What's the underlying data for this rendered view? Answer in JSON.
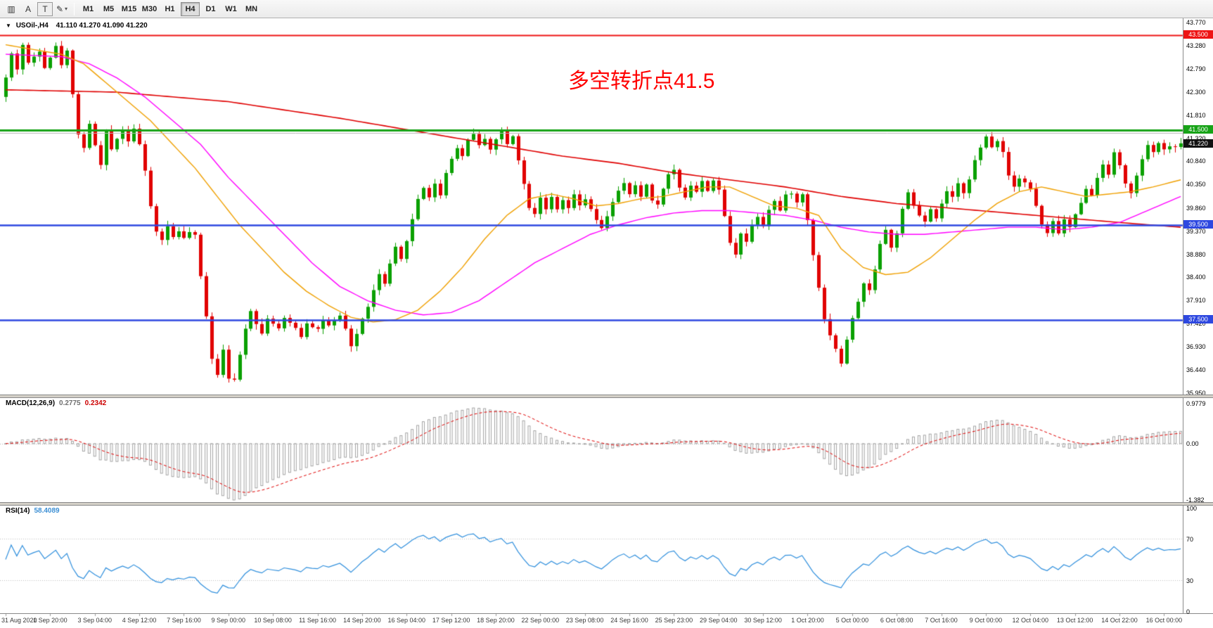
{
  "toolbar": {
    "chart_icon": "▥",
    "text_label": "A",
    "text_tool": "T",
    "draw_tool": "✎",
    "dropdown_arrow": "▾",
    "timeframes": [
      "M1",
      "M5",
      "M15",
      "M30",
      "H1",
      "H4",
      "D1",
      "W1",
      "MN"
    ],
    "active_timeframe": "H4"
  },
  "chart": {
    "title": {
      "collapse_arrow": "▼",
      "symbol": "USOil-,H4",
      "ohlc": "41.110 41.270 41.090 41.220"
    },
    "annotation": {
      "text": "多空转折点41.5",
      "color": "#ff0000"
    }
  },
  "chart_data": {
    "type": "candlestick",
    "symbol": "USOil-",
    "timeframe": "H4",
    "last_bar": {
      "open": 41.11,
      "high": 41.27,
      "low": 41.09,
      "close": 41.22
    },
    "current_price": {
      "value": 41.22,
      "label": "41.220",
      "badge_color": "#111111"
    },
    "price_axis": {
      "min": 35.95,
      "max": 43.77,
      "ticks": [
        "43.770",
        "43.280",
        "42.790",
        "42.300",
        "41.810",
        "41.320",
        "40.840",
        "40.350",
        "39.860",
        "39.370",
        "38.880",
        "38.400",
        "37.910",
        "37.420",
        "36.930",
        "36.440",
        "35.950"
      ]
    },
    "levels": [
      {
        "price": 43.5,
        "label": "43.500",
        "color": "#ee1515",
        "width": 2
      },
      {
        "price": 41.5,
        "label": "41.500",
        "color": "#17a317",
        "width": 3
      },
      {
        "price": 41.44,
        "label": "",
        "color": "#b8b8b8",
        "width": 1
      },
      {
        "price": 39.5,
        "label": "39.500",
        "color": "#2e48e0",
        "width": 2.5
      },
      {
        "price": 37.5,
        "label": "37.500",
        "color": "#2e48e0",
        "width": 2.5
      }
    ],
    "bar_count": 212,
    "price_path": [
      [
        0,
        42.6
      ],
      [
        1,
        43.1
      ],
      [
        2,
        42.8
      ],
      [
        3,
        43.3
      ],
      [
        4,
        42.9
      ],
      [
        6,
        43.2
      ],
      [
        7,
        42.85
      ],
      [
        9,
        43.25
      ],
      [
        10,
        42.9
      ],
      [
        11,
        43.15
      ],
      [
        12,
        42.3
      ],
      [
        13,
        41.4
      ],
      [
        14,
        41.15
      ],
      [
        15,
        41.6
      ],
      [
        16,
        41.2
      ],
      [
        17,
        40.75
      ],
      [
        18,
        41.45
      ],
      [
        19,
        41.1
      ],
      [
        20,
        41.35
      ],
      [
        21,
        41.5
      ],
      [
        22,
        41.3
      ],
      [
        23,
        41.55
      ],
      [
        24,
        41.2
      ],
      [
        25,
        40.6
      ],
      [
        26,
        39.9
      ],
      [
        27,
        39.35
      ],
      [
        28,
        39.2
      ],
      [
        29,
        39.45
      ],
      [
        30,
        39.25
      ],
      [
        31,
        39.4
      ],
      [
        32,
        39.2
      ],
      [
        33,
        39.35
      ],
      [
        34,
        39.25
      ],
      [
        35,
        38.4
      ],
      [
        36,
        37.6
      ],
      [
        37,
        36.7
      ],
      [
        38,
        36.35
      ],
      [
        39,
        36.9
      ],
      [
        40,
        36.3
      ],
      [
        41,
        36.2
      ],
      [
        42,
        36.75
      ],
      [
        43,
        37.35
      ],
      [
        44,
        37.7
      ],
      [
        45,
        37.45
      ],
      [
        46,
        37.2
      ],
      [
        47,
        37.55
      ],
      [
        49,
        37.3
      ],
      [
        50,
        37.5
      ],
      [
        52,
        37.35
      ],
      [
        53,
        37.15
      ],
      [
        54,
        37.45
      ],
      [
        56,
        37.3
      ],
      [
        57,
        37.5
      ],
      [
        58,
        37.35
      ],
      [
        60,
        37.55
      ],
      [
        61,
        37.3
      ],
      [
        62,
        36.95
      ],
      [
        63,
        37.2
      ],
      [
        64,
        37.5
      ],
      [
        65,
        37.8
      ],
      [
        66,
        38.1
      ],
      [
        67,
        38.45
      ],
      [
        68,
        38.25
      ],
      [
        69,
        38.65
      ],
      [
        70,
        39.0
      ],
      [
        71,
        38.75
      ],
      [
        72,
        39.2
      ],
      [
        73,
        39.6
      ],
      [
        74,
        40.05
      ],
      [
        75,
        40.3
      ],
      [
        76,
        40.1
      ],
      [
        77,
        40.35
      ],
      [
        78,
        40.15
      ],
      [
        79,
        40.6
      ],
      [
        80,
        40.9
      ],
      [
        81,
        41.15
      ],
      [
        82,
        40.95
      ],
      [
        83,
        41.3
      ],
      [
        84,
        41.45
      ],
      [
        85,
        41.15
      ],
      [
        86,
        41.35
      ],
      [
        87,
        41.1
      ],
      [
        88,
        41.3
      ],
      [
        89,
        41.45
      ],
      [
        90,
        41.2
      ],
      [
        91,
        41.4
      ],
      [
        92,
        40.9
      ],
      [
        93,
        40.35
      ],
      [
        94,
        39.9
      ],
      [
        95,
        39.75
      ],
      [
        96,
        40.1
      ],
      [
        97,
        39.85
      ],
      [
        98,
        40.05
      ],
      [
        99,
        39.8
      ],
      [
        100,
        40.0
      ],
      [
        101,
        39.85
      ],
      [
        102,
        40.1
      ],
      [
        103,
        39.9
      ],
      [
        104,
        40.05
      ],
      [
        105,
        39.8
      ],
      [
        106,
        39.6
      ],
      [
        107,
        39.4
      ],
      [
        108,
        39.7
      ],
      [
        109,
        40.0
      ],
      [
        110,
        40.2
      ],
      [
        111,
        40.35
      ],
      [
        112,
        40.15
      ],
      [
        113,
        40.3
      ],
      [
        114,
        40.1
      ],
      [
        115,
        40.35
      ],
      [
        116,
        40.05
      ],
      [
        117,
        39.9
      ],
      [
        118,
        40.3
      ],
      [
        119,
        40.55
      ],
      [
        120,
        40.65
      ],
      [
        121,
        40.3
      ],
      [
        122,
        40.1
      ],
      [
        123,
        40.35
      ],
      [
        124,
        40.2
      ],
      [
        125,
        40.4
      ],
      [
        126,
        40.25
      ],
      [
        127,
        40.45
      ],
      [
        128,
        40.2
      ],
      [
        129,
        39.7
      ],
      [
        130,
        39.1
      ],
      [
        131,
        38.9
      ],
      [
        132,
        39.35
      ],
      [
        133,
        39.15
      ],
      [
        134,
        39.5
      ],
      [
        135,
        39.7
      ],
      [
        136,
        39.5
      ],
      [
        137,
        39.85
      ],
      [
        138,
        40.0
      ],
      [
        139,
        39.8
      ],
      [
        140,
        40.1
      ],
      [
        141,
        40.2
      ],
      [
        142,
        39.95
      ],
      [
        143,
        40.15
      ],
      [
        144,
        39.6
      ],
      [
        145,
        38.9
      ],
      [
        146,
        38.2
      ],
      [
        147,
        37.5
      ],
      [
        148,
        37.2
      ],
      [
        149,
        36.9
      ],
      [
        150,
        36.55
      ],
      [
        151,
        37.1
      ],
      [
        152,
        37.5
      ],
      [
        153,
        37.9
      ],
      [
        154,
        38.25
      ],
      [
        155,
        38.1
      ],
      [
        156,
        38.6
      ],
      [
        157,
        39.1
      ],
      [
        158,
        39.4
      ],
      [
        159,
        39.0
      ],
      [
        160,
        39.35
      ],
      [
        161,
        39.8
      ],
      [
        162,
        40.15
      ],
      [
        163,
        39.9
      ],
      [
        164,
        39.7
      ],
      [
        165,
        39.55
      ],
      [
        166,
        39.8
      ],
      [
        167,
        39.6
      ],
      [
        168,
        39.95
      ],
      [
        169,
        40.2
      ],
      [
        170,
        40.05
      ],
      [
        171,
        40.35
      ],
      [
        172,
        40.2
      ],
      [
        173,
        40.5
      ],
      [
        174,
        40.85
      ],
      [
        175,
        41.1
      ],
      [
        176,
        41.35
      ],
      [
        177,
        41.15
      ],
      [
        178,
        41.3
      ],
      [
        179,
        41.05
      ],
      [
        180,
        40.55
      ],
      [
        181,
        40.35
      ],
      [
        182,
        40.5
      ],
      [
        183,
        40.4
      ],
      [
        184,
        40.25
      ],
      [
        185,
        39.9
      ],
      [
        186,
        39.5
      ],
      [
        187,
        39.3
      ],
      [
        188,
        39.55
      ],
      [
        189,
        39.35
      ],
      [
        190,
        39.6
      ],
      [
        191,
        39.45
      ],
      [
        192,
        39.7
      ],
      [
        193,
        40.0
      ],
      [
        194,
        40.3
      ],
      [
        195,
        40.1
      ],
      [
        196,
        40.5
      ],
      [
        197,
        40.8
      ],
      [
        198,
        40.6
      ],
      [
        199,
        41.0
      ],
      [
        200,
        40.75
      ],
      [
        201,
        40.4
      ],
      [
        202,
        40.15
      ],
      [
        203,
        40.5
      ],
      [
        204,
        40.9
      ],
      [
        205,
        41.15
      ],
      [
        206,
        41.0
      ],
      [
        207,
        41.25
      ],
      [
        208,
        41.05
      ],
      [
        209,
        41.2
      ],
      [
        210,
        41.1
      ],
      [
        211,
        41.22
      ]
    ],
    "moving_averages": [
      {
        "name": "slow-ma",
        "color": "#e00000",
        "width": 1.6,
        "path": [
          [
            0,
            42.35
          ],
          [
            20,
            42.3
          ],
          [
            40,
            42.1
          ],
          [
            60,
            41.75
          ],
          [
            80,
            41.35
          ],
          [
            90,
            41.15
          ],
          [
            100,
            40.95
          ],
          [
            110,
            40.8
          ],
          [
            120,
            40.6
          ],
          [
            130,
            40.45
          ],
          [
            140,
            40.3
          ],
          [
            150,
            40.1
          ],
          [
            160,
            39.95
          ],
          [
            170,
            39.85
          ],
          [
            180,
            39.75
          ],
          [
            190,
            39.65
          ],
          [
            200,
            39.55
          ],
          [
            211,
            39.45
          ]
        ]
      },
      {
        "name": "medium-ma",
        "color": "#ff00ff",
        "width": 1.4,
        "path": [
          [
            0,
            43.1
          ],
          [
            10,
            43.05
          ],
          [
            15,
            42.9
          ],
          [
            20,
            42.6
          ],
          [
            25,
            42.2
          ],
          [
            30,
            41.7
          ],
          [
            35,
            41.2
          ],
          [
            40,
            40.5
          ],
          [
            45,
            39.9
          ],
          [
            50,
            39.3
          ],
          [
            55,
            38.7
          ],
          [
            60,
            38.2
          ],
          [
            65,
            37.9
          ],
          [
            70,
            37.7
          ],
          [
            75,
            37.6
          ],
          [
            80,
            37.65
          ],
          [
            85,
            37.9
          ],
          [
            90,
            38.3
          ],
          [
            95,
            38.7
          ],
          [
            100,
            39.0
          ],
          [
            105,
            39.3
          ],
          [
            110,
            39.5
          ],
          [
            115,
            39.65
          ],
          [
            120,
            39.75
          ],
          [
            125,
            39.8
          ],
          [
            130,
            39.8
          ],
          [
            135,
            39.75
          ],
          [
            140,
            39.7
          ],
          [
            145,
            39.6
          ],
          [
            150,
            39.45
          ],
          [
            155,
            39.35
          ],
          [
            160,
            39.3
          ],
          [
            165,
            39.3
          ],
          [
            170,
            39.35
          ],
          [
            175,
            39.4
          ],
          [
            180,
            39.45
          ],
          [
            185,
            39.45
          ],
          [
            190,
            39.4
          ],
          [
            195,
            39.45
          ],
          [
            200,
            39.55
          ],
          [
            205,
            39.8
          ],
          [
            211,
            40.1
          ]
        ]
      },
      {
        "name": "fast-ma",
        "color": "#f0a000",
        "width": 1.4,
        "path": [
          [
            0,
            43.3
          ],
          [
            5,
            43.2
          ],
          [
            10,
            43.1
          ],
          [
            14,
            42.9
          ],
          [
            18,
            42.5
          ],
          [
            22,
            42.1
          ],
          [
            26,
            41.7
          ],
          [
            30,
            41.2
          ],
          [
            34,
            40.7
          ],
          [
            38,
            40.1
          ],
          [
            42,
            39.5
          ],
          [
            46,
            39.0
          ],
          [
            50,
            38.5
          ],
          [
            54,
            38.1
          ],
          [
            58,
            37.8
          ],
          [
            62,
            37.55
          ],
          [
            66,
            37.45
          ],
          [
            70,
            37.5
          ],
          [
            74,
            37.7
          ],
          [
            78,
            38.1
          ],
          [
            82,
            38.6
          ],
          [
            86,
            39.2
          ],
          [
            90,
            39.7
          ],
          [
            94,
            40.05
          ],
          [
            98,
            40.15
          ],
          [
            102,
            40.05
          ],
          [
            106,
            39.9
          ],
          [
            110,
            39.95
          ],
          [
            114,
            40.05
          ],
          [
            118,
            40.1
          ],
          [
            122,
            40.2
          ],
          [
            126,
            40.3
          ],
          [
            130,
            40.3
          ],
          [
            134,
            40.1
          ],
          [
            138,
            39.9
          ],
          [
            142,
            39.85
          ],
          [
            146,
            39.7
          ],
          [
            150,
            39.0
          ],
          [
            154,
            38.6
          ],
          [
            158,
            38.45
          ],
          [
            162,
            38.5
          ],
          [
            166,
            38.8
          ],
          [
            170,
            39.2
          ],
          [
            174,
            39.6
          ],
          [
            178,
            39.95
          ],
          [
            182,
            40.2
          ],
          [
            186,
            40.3
          ],
          [
            190,
            40.2
          ],
          [
            194,
            40.1
          ],
          [
            198,
            40.15
          ],
          [
            202,
            40.2
          ],
          [
            206,
            40.3
          ],
          [
            211,
            40.45
          ]
        ]
      }
    ],
    "macd": {
      "label": "MACD(12,26,9)",
      "value_main": "0.2775",
      "value_signal": "0.2342",
      "axis": [
        "0.9779",
        "0.00",
        "-1.382"
      ]
    },
    "rsi": {
      "label": "RSI(14)",
      "value": "58.4089",
      "levels": [
        70,
        30
      ],
      "axis": [
        "100",
        "70",
        "30",
        "0"
      ]
    },
    "time_labels": [
      "31 Aug 2020",
      "1 Sep 20:00",
      "3 Sep 04:00",
      "4 Sep 12:00",
      "7 Sep 16:00",
      "9 Sep 00:00",
      "10 Sep 08:00",
      "11 Sep 16:00",
      "14 Sep 20:00",
      "16 Sep 04:00",
      "17 Sep 12:00",
      "18 Sep 20:00",
      "22 Sep 00:00",
      "23 Sep 08:00",
      "24 Sep 16:00",
      "25 Sep 23:00",
      "29 Sep 04:00",
      "30 Sep 12:00",
      "1 Oct 20:00",
      "5 Oct 00:00",
      "6 Oct 08:00",
      "7 Oct 16:00",
      "9 Oct 00:00",
      "12 Oct 04:00",
      "13 Oct 12:00",
      "14 Oct 22:00",
      "16 Oct 00:00"
    ]
  }
}
